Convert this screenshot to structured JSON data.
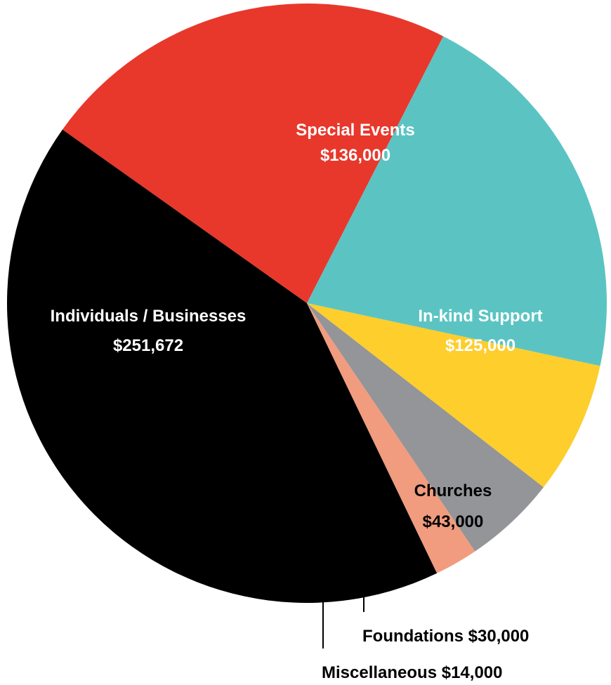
{
  "chart_data": {
    "type": "pie",
    "slices": [
      {
        "label": "Special Events",
        "value": 136000,
        "value_text": "$136,000",
        "color": "#E8382C",
        "label_color": "#FFFFFF"
      },
      {
        "label": "In-kind Support",
        "value": 125000,
        "value_text": "$125,000",
        "color": "#5BC4C3",
        "label_color": "#FFFFFF"
      },
      {
        "label": "Churches",
        "value": 43000,
        "value_text": "$43,000",
        "color": "#FDCE2C",
        "label_color": "#000000"
      },
      {
        "label": "Foundations",
        "value": 30000,
        "value_text": "$30,000",
        "color": "#939598",
        "label_color": "#000000"
      },
      {
        "label": "Miscellaneous",
        "value": 14000,
        "value_text": "$14,000",
        "color": "#F19C7E",
        "label_color": "#000000"
      },
      {
        "label": "Individuals / Businesses",
        "value": 251672,
        "value_text": "$251,672",
        "color": "#000000",
        "label_color": "#FFFFFF"
      }
    ]
  }
}
